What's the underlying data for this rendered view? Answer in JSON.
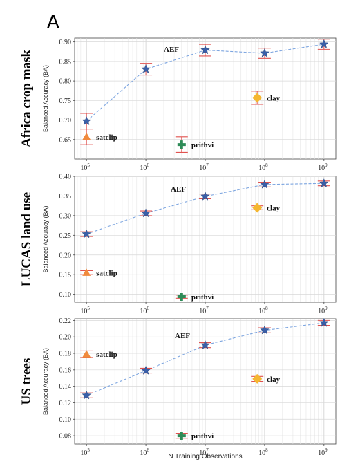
{
  "figure": {
    "panel_letter": "A",
    "xlabel": "N Training Observations",
    "ylabel": "Balanced Accuracy (BA)"
  },
  "colors": {
    "aef": "#3a5fa8",
    "aef_line": "#7ea6e0",
    "error_bar": "#e0524f",
    "satclip": "#f08a3c",
    "prithvi": "#2e8b57",
    "clay": "#f5b731"
  },
  "chart_data": [
    {
      "type": "line",
      "title": "Africa crop mask",
      "xscale": "log",
      "x_ticks": [
        5,
        6,
        7,
        8,
        9
      ],
      "ylim": [
        0.6,
        0.91
      ],
      "y_ticks": [
        "0.65",
        "0.70",
        "0.75",
        "0.80",
        "0.85",
        "0.90"
      ],
      "grid": true,
      "series": [
        {
          "name": "AEF",
          "marker": "star",
          "points": [
            {
              "x": 100000,
              "y": 0.697,
              "err": 0.02
            },
            {
              "x": 1000000,
              "y": 0.83,
              "err": 0.015
            },
            {
              "x": 10000000,
              "y": 0.879,
              "err": 0.015
            },
            {
              "x": 100000000,
              "y": 0.871,
              "err": 0.013
            },
            {
              "x": 1000000000,
              "y": 0.894,
              "err": 0.013
            }
          ]
        },
        {
          "name": "satclip",
          "marker": "triangle",
          "points": [
            {
              "x": 100000,
              "y": 0.657,
              "err": 0.02
            }
          ]
        },
        {
          "name": "prithvi",
          "marker": "plus",
          "points": [
            {
              "x": 4000000,
              "y": 0.637,
              "err": 0.02
            }
          ]
        },
        {
          "name": "clay",
          "marker": "diamond",
          "points": [
            {
              "x": 75000000,
              "y": 0.757,
              "err": 0.017
            }
          ]
        }
      ]
    },
    {
      "type": "line",
      "title": "LUCAS land use",
      "xscale": "log",
      "x_ticks": [
        5,
        6,
        7,
        8,
        9
      ],
      "ylim": [
        0.08,
        0.4
      ],
      "y_ticks": [
        "0.10",
        "0.15",
        "0.20",
        "0.25",
        "0.30",
        "0.35",
        "0.40"
      ],
      "grid": true,
      "series": [
        {
          "name": "AEF",
          "marker": "star",
          "points": [
            {
              "x": 100000,
              "y": 0.253,
              "err": 0.006
            },
            {
              "x": 1000000,
              "y": 0.306,
              "err": 0.006
            },
            {
              "x": 10000000,
              "y": 0.349,
              "err": 0.006
            },
            {
              "x": 100000000,
              "y": 0.379,
              "err": 0.006
            },
            {
              "x": 1000000000,
              "y": 0.382,
              "err": 0.006
            }
          ]
        },
        {
          "name": "satclip",
          "marker": "triangle",
          "points": [
            {
              "x": 100000,
              "y": 0.155,
              "err": 0.005
            }
          ]
        },
        {
          "name": "prithvi",
          "marker": "plus",
          "points": [
            {
              "x": 4000000,
              "y": 0.094,
              "err": 0.004
            }
          ]
        },
        {
          "name": "clay",
          "marker": "diamond",
          "points": [
            {
              "x": 75000000,
              "y": 0.32,
              "err": 0.005
            }
          ]
        }
      ]
    },
    {
      "type": "line",
      "title": "US trees",
      "xscale": "log",
      "x_ticks": [
        5,
        6,
        7,
        8,
        9
      ],
      "ylim": [
        0.07,
        0.222
      ],
      "y_ticks": [
        "0.08",
        "0.10",
        "0.12",
        "0.14",
        "0.16",
        "0.18",
        "0.20",
        "0.22"
      ],
      "grid": true,
      "series": [
        {
          "name": "AEF",
          "marker": "star",
          "points": [
            {
              "x": 100000,
              "y": 0.129,
              "err": 0.003
            },
            {
              "x": 1000000,
              "y": 0.159,
              "err": 0.003
            },
            {
              "x": 10000000,
              "y": 0.19,
              "err": 0.003
            },
            {
              "x": 100000000,
              "y": 0.208,
              "err": 0.003
            },
            {
              "x": 1000000000,
              "y": 0.217,
              "err": 0.003
            }
          ]
        },
        {
          "name": "satclip",
          "marker": "triangle",
          "points": [
            {
              "x": 100000,
              "y": 0.179,
              "err": 0.004
            }
          ]
        },
        {
          "name": "prithvi",
          "marker": "plus",
          "points": [
            {
              "x": 4000000,
              "y": 0.08,
              "err": 0.003
            }
          ]
        },
        {
          "name": "clay",
          "marker": "diamond",
          "points": [
            {
              "x": 75000000,
              "y": 0.149,
              "err": 0.003
            }
          ]
        }
      ]
    }
  ]
}
